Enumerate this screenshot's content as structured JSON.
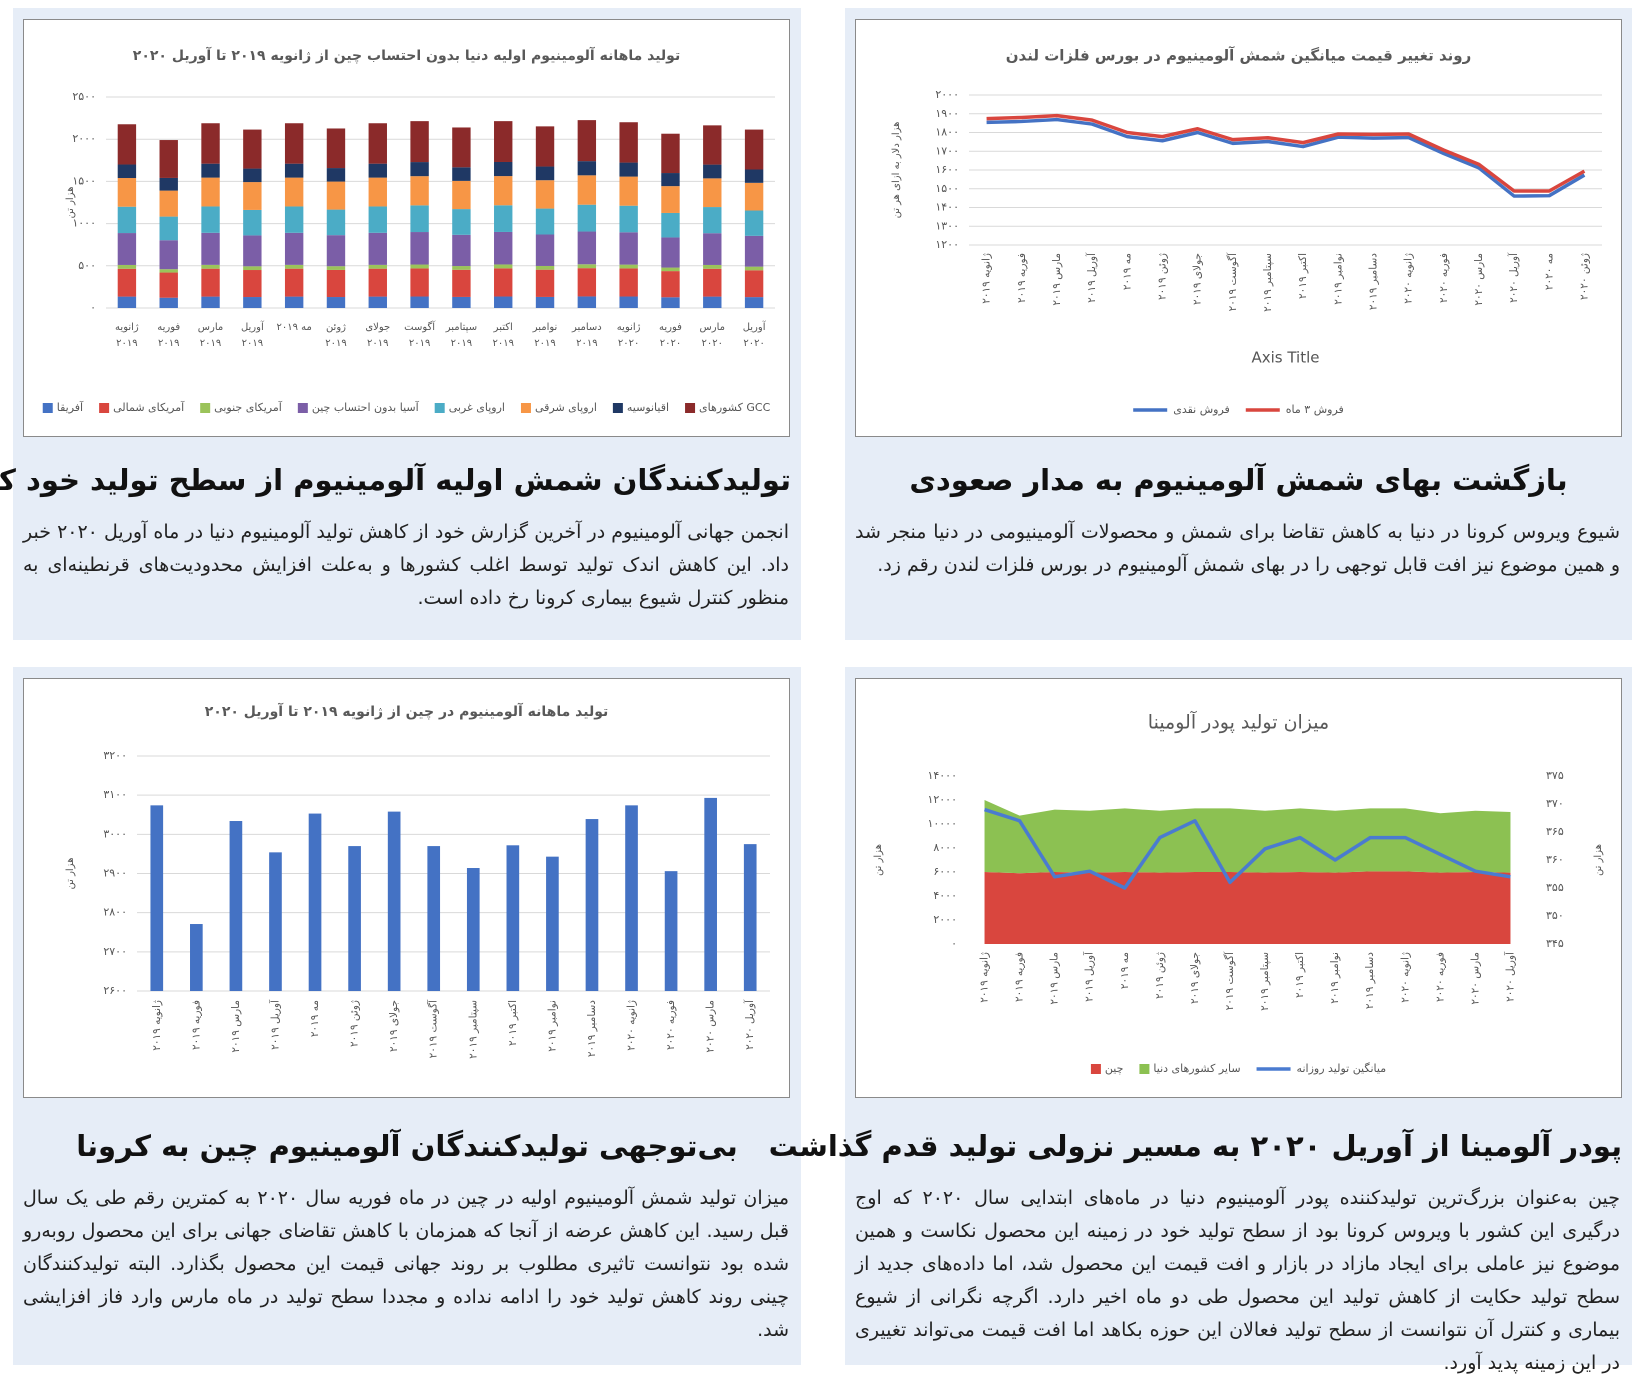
{
  "chart_data": [
    {
      "type": "bar",
      "stacked": true,
      "title": "تولید ماهانه آلومینیوم اولیه دنیا بدون احتساب چین از ژانویه ۲۰۱۹ تا آوریل ۲۰۲۰",
      "y_label": "هزار تن",
      "categories": [
        "ژانویه ۲۰۱۹",
        "فوریه ۲۰۱۹",
        "مارس ۲۰۱۹",
        "آوریل ۲۰۱۹",
        "مه ۲۰۱۹",
        "ژوئن ۲۰۱۹",
        "جولای ۲۰۱۹",
        "آگوست ۲۰۱۹",
        "سپتامبر ۲۰۱۹",
        "اکتبر ۲۰۱۹",
        "نوامبر ۲۰۱۹",
        "دسامبر ۲۰۱۹",
        "ژانویه ۲۰۲۰",
        "فوریه ۲۰۲۰",
        "مارس ۲۰۲۰",
        "آوریل ۲۰۲۰"
      ],
      "series": [
        {
          "name": "آفریقا",
          "color": "#4472c4",
          "values": [
            135,
            122,
            135,
            130,
            135,
            130,
            135,
            136,
            131,
            136,
            131,
            137,
            136,
            127,
            135,
            129
          ]
        },
        {
          "name": "آمریکای شمالی",
          "color": "#d9463e",
          "values": [
            330,
            298,
            331,
            320,
            331,
            321,
            331,
            333,
            322,
            334,
            323,
            335,
            333,
            310,
            330,
            318
          ]
        },
        {
          "name": "آمریکای جنوبی",
          "color": "#9bc35a",
          "values": [
            45,
            40,
            45,
            44,
            45,
            44,
            45,
            46,
            44,
            46,
            44,
            46,
            45,
            42,
            45,
            43
          ]
        },
        {
          "name": "آسیا بدون احتساب چین",
          "color": "#7b5ea7",
          "values": [
            378,
            343,
            380,
            366,
            380,
            368,
            380,
            385,
            370,
            385,
            373,
            388,
            383,
            357,
            376,
            365
          ]
        },
        {
          "name": "اروپای غربی",
          "color": "#4bacc6",
          "values": [
            312,
            280,
            312,
            302,
            312,
            303,
            312,
            316,
            305,
            316,
            307,
            318,
            315,
            290,
            310,
            300
          ]
        },
        {
          "name": "اروپای شرقی",
          "color": "#f79646",
          "values": [
            340,
            308,
            342,
            330,
            342,
            332,
            342,
            346,
            334,
            346,
            336,
            348,
            345,
            318,
            340,
            328
          ]
        },
        {
          "name": "اقیانوسیه",
          "color": "#1f3864",
          "values": [
            160,
            150,
            165,
            160,
            165,
            160,
            165,
            167,
            161,
            167,
            162,
            168,
            166,
            155,
            163,
            158
          ]
        },
        {
          "name": "کشورهای GCC",
          "color": "#8b2a2a",
          "values": [
            477,
            449,
            479,
            462,
            479,
            469,
            479,
            485,
            472,
            484,
            476,
            486,
            478,
            466,
            465,
            473
          ]
        }
      ],
      "ylim": [
        0,
        2500
      ],
      "yticks": [
        {
          "value": 0,
          "label": "۰"
        },
        {
          "value": 500,
          "label": "۵۰۰"
        },
        {
          "value": 1000,
          "label": "۱۰۰۰"
        },
        {
          "value": 1500,
          "label": "۱۵۰۰"
        },
        {
          "value": 2000,
          "label": "۲۰۰۰"
        },
        {
          "value": 2500,
          "label": "۲۵۰۰"
        }
      ],
      "grid": true,
      "legend": "bottom"
    },
    {
      "type": "line",
      "title": "روند تغییر قیمت میانگین شمش آلومینیوم در بورس فلزات لندن",
      "y_label": "هزار دلار به ازای هر تن",
      "x_label": "Axis Title",
      "categories": [
        "ژانویه ۲۰۱۹",
        "فوریه ۲۰۱۹",
        "مارس ۲۰۱۹",
        "آوریل ۲۰۱۹",
        "مه ۲۰۱۹",
        "ژوئن ۲۰۱۹",
        "جولای ۲۰۱۹",
        "آگوست ۲۰۱۹",
        "سپتامبر ۲۰۱۹",
        "اکتبر ۲۰۱۹",
        "نوامبر ۲۰۱۹",
        "دسامبر ۲۰۱۹",
        "ژانویه ۲۰۲۰",
        "فوریه ۲۰۲۰",
        "مارس ۲۰۲۰",
        "آوریل ۲۰۲۰",
        "مه ۲۰۲۰",
        "ژوئن ۲۰۲۰"
      ],
      "series": [
        {
          "name": "فروش نقدی",
          "color": "#4472c4",
          "values": [
            1854,
            1859,
            1869,
            1845,
            1778,
            1756,
            1800,
            1742,
            1752,
            1725,
            1775,
            1770,
            1773,
            1688,
            1611,
            1461,
            1463,
            1573
          ]
        },
        {
          "name": "فروش ۳ ماه",
          "color": "#d9463e",
          "values": [
            1874,
            1880,
            1890,
            1866,
            1800,
            1778,
            1820,
            1762,
            1772,
            1746,
            1792,
            1790,
            1792,
            1706,
            1630,
            1488,
            1488,
            1594
          ]
        }
      ],
      "ylim": [
        1200,
        2000
      ],
      "yticks": [
        {
          "value": 1200,
          "label": "۱۲۰۰"
        },
        {
          "value": 1300,
          "label": "۱۳۰۰"
        },
        {
          "value": 1400,
          "label": "۱۴۰۰"
        },
        {
          "value": 1500,
          "label": "۱۵۰۰"
        },
        {
          "value": 1600,
          "label": "۱۶۰۰"
        },
        {
          "value": 1700,
          "label": "۱۷۰۰"
        },
        {
          "value": 1800,
          "label": "۱۸۰۰"
        },
        {
          "value": 1900,
          "label": "۱۹۰۰"
        },
        {
          "value": 2000,
          "label": "۲۰۰۰"
        }
      ],
      "grid": true,
      "legend": "bottom"
    },
    {
      "type": "bar",
      "title": "تولید ماهانه آلومینیوم در چین از ژانویه ۲۰۱۹ تا آوریل ۲۰۲۰",
      "y_label": "هزار تن",
      "categories": [
        "ژانویه ۲۰۱۹",
        "فوریه ۲۰۱۹",
        "مارس ۲۰۱۹",
        "آوریل ۲۰۱۹",
        "مه ۲۰۱۹",
        "ژوئن ۲۰۱۹",
        "جولای ۲۰۱۹",
        "آگوست ۲۰۱۹",
        "سپتامبر ۲۰۱۹",
        "اکتبر ۲۰۱۹",
        "نوامبر ۲۰۱۹",
        "دسامبر ۲۰۱۹",
        "ژانویه ۲۰۲۰",
        "فوریه ۲۰۲۰",
        "مارس ۲۰۲۰",
        "آوریل ۲۰۲۰"
      ],
      "values": [
        3074,
        2771,
        3034,
        2954,
        3053,
        2970,
        3058,
        2970,
        2914,
        2972,
        2943,
        3039,
        3074,
        2906,
        3093,
        2975
      ],
      "color": "#4472c4",
      "ylim": [
        2600,
        3200
      ],
      "yticks": [
        {
          "value": 2600,
          "label": "۲۶۰۰"
        },
        {
          "value": 2700,
          "label": "۲۷۰۰"
        },
        {
          "value": 2800,
          "label": "۲۸۰۰"
        },
        {
          "value": 2900,
          "label": "۲۹۰۰"
        },
        {
          "value": 3000,
          "label": "۳۰۰۰"
        },
        {
          "value": 3100,
          "label": "۳۱۰۰"
        },
        {
          "value": 3200,
          "label": "۳۲۰۰"
        }
      ],
      "grid": true
    },
    {
      "type": "area",
      "title": "میزان تولید پودر آلومینا",
      "y_label": "هزار تن",
      "y2_label": "هزار تن",
      "categories": [
        "ژانویه ۲۰۱۹",
        "فوریه ۲۰۱۹",
        "مارس ۲۰۱۹",
        "آوریل ۲۰۱۹",
        "مه ۲۰۱۹",
        "ژوئن ۲۰۱۹",
        "جولای ۲۰۱۹",
        "آگوست ۲۰۱۹",
        "سپتامبر ۲۰۱۹",
        "اکتبر ۲۰۱۹",
        "نوامبر ۲۰۱۹",
        "دسامبر ۲۰۱۹",
        "ژانویه ۲۰۲۰",
        "فوریه ۲۰۲۰",
        "مارس ۲۰۲۰",
        "آوریل ۲۰۲۰"
      ],
      "series": [
        {
          "name": "چین",
          "type": "area",
          "color": "#d9463e",
          "values": [
            6000,
            5900,
            6000,
            5950,
            6000,
            5950,
            6000,
            6000,
            5950,
            6000,
            5950,
            6050,
            6050,
            5950,
            6000,
            5950
          ]
        },
        {
          "name": "سایر کشورهای دنیا",
          "type": "area",
          "color": "#8cc152",
          "values": [
            6000,
            4800,
            5200,
            5150,
            5300,
            5150,
            5300,
            5300,
            5150,
            5300,
            5150,
            5250,
            5250,
            4950,
            5100,
            5050
          ]
        },
        {
          "name": "میانگین تولید روزانه",
          "type": "line",
          "axis": "y2",
          "color": "#4a7bd0",
          "values": [
            369,
            367,
            357,
            358,
            355,
            364,
            367,
            356,
            362,
            364,
            360,
            364,
            364,
            361,
            358,
            357
          ]
        }
      ],
      "ylim": [
        0,
        14000
      ],
      "yticks": [
        {
          "value": 0,
          "label": "۰"
        },
        {
          "value": 2000,
          "label": "۲۰۰۰"
        },
        {
          "value": 4000,
          "label": "۴۰۰۰"
        },
        {
          "value": 6000,
          "label": "۶۰۰۰"
        },
        {
          "value": 8000,
          "label": "۸۰۰۰"
        },
        {
          "value": 10000,
          "label": "۱۰۰۰۰"
        },
        {
          "value": 12000,
          "label": "۱۲۰۰۰"
        },
        {
          "value": 14000,
          "label": "۱۴۰۰۰"
        }
      ],
      "y2lim": [
        345,
        375
      ],
      "y2ticks": [
        {
          "value": 345,
          "label": "۳۴۵"
        },
        {
          "value": 350,
          "label": "۳۵۰"
        },
        {
          "value": 355,
          "label": "۳۵۵"
        },
        {
          "value": 360,
          "label": "۳۶۰"
        },
        {
          "value": 365,
          "label": "۳۶۵"
        },
        {
          "value": 370,
          "label": "۳۷۰"
        },
        {
          "value": 375,
          "label": "۳۷۵"
        }
      ],
      "grid": false,
      "legend": "bottom"
    }
  ],
  "articles": [
    {
      "headline": "تولیدکنندگان شمش اولیه آلومینیوم از سطح تولید خود کاستند",
      "body": "انجمن جهانی آلومینیوم در آخرین گزارش خود از کاهش تولید آلومینیوم دنیا در ماه آوریل ۲۰۲۰ خبر داد. این کاهش اندک تولید توسط اغلب کشورها و به‌علت افزایش محدودیت‌های قرنطینه‌ای به منظور کنترل شیوع بیماری کرونا رخ داده است."
    },
    {
      "headline": "بازگشت بهای شمش آلومینیوم به مدار صعودی",
      "body": "شیوع ویروس کرونا در دنیا به کاهش تقاضا برای شمش و محصولات آلومینیومی در دنیا منجر شد و همین موضوع نیز افت قابل توجهی را در بهای شمش آلومینیوم در بورس فلزات لندن رقم زد."
    },
    {
      "headline": "بی‌توجهی تولیدکنندگان آلومینیوم چین به کرونا",
      "body": "میزان تولید شمش آلومینیوم اولیه در چین در ماه فوریه سال ۲۰۲۰ به کمترین رقم طی یک سال قبل رسید. این کاهش عرضه از آنجا که همزمان با کاهش تقاضای جهانی برای این محصول روبه‌رو شده بود نتوانست تاثیری مطلوب بر روند جهانی قیمت این محصول بگذارد. البته تولیدکنندگان چینی روند کاهش تولید خود را ادامه نداده و مجددا سطح تولید در ماه مارس وارد فاز افزایشی شد."
    },
    {
      "headline": "پودر آلومینا از آوریل ۲۰۲۰ به مسیر نزولی تولید قدم گذاشت",
      "body": "چین به‌عنوان بزرگ‌ترین تولیدکننده پودر آلومینیوم دنیا در ماه‌های ابتدایی سال ۲۰۲۰ که اوج درگیری این کشور با ویروس کرونا بود از سطح تولید خود در زمینه این محصول نکاست و همین موضوع نیز عاملی برای ایجاد مازاد در بازار و افت قیمت این محصول شد، اما داده‌های جدید از سطح تولید حکایت از کاهش تولید این محصول طی دو ماه اخیر دارد. اگرچه نگرانی از شیوع بیماری و کنترل آن نتوانست از سطح تولید فعالان این حوزه بکاهد اما افت قیمت می‌تواند تغییری در این زمینه پدید آورد."
    }
  ]
}
